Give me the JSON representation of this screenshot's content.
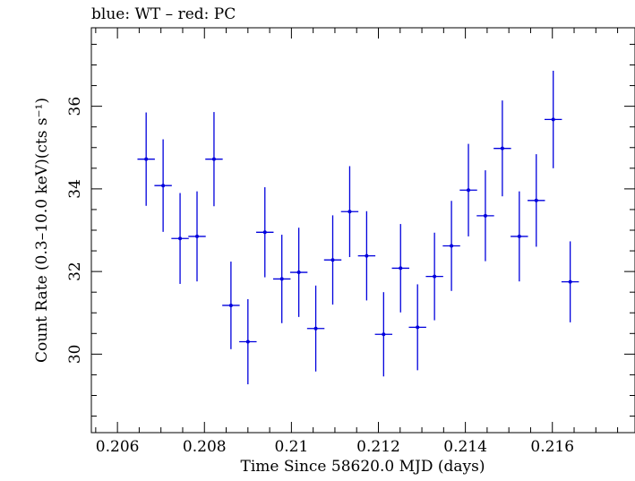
{
  "chart_data": {
    "type": "scatter",
    "title": "blue: WT – red: PC",
    "xlabel": "Time Since 58620.0 MJD (days)",
    "ylabel": "Count Rate (0.3–10.0 keV)(cts s⁻¹)",
    "xlim": [
      0.2054,
      0.2179
    ],
    "ylim": [
      28.1,
      37.9
    ],
    "x_ticks": [
      0.206,
      0.208,
      0.21,
      0.212,
      0.214,
      0.216
    ],
    "x_tick_labels": [
      "0.206",
      "0.208",
      "0.21",
      "0.212",
      "0.214",
      "0.216"
    ],
    "y_ticks": [
      30,
      32,
      34,
      36
    ],
    "y_tick_labels": [
      "30",
      "32",
      "34",
      "36"
    ],
    "grid": false,
    "series": [
      {
        "color": "#0000dd",
        "points": [
          {
            "x": 0.20666,
            "xerr": 0.0002,
            "y": 34.72,
            "yerr": 1.13
          },
          {
            "x": 0.20705,
            "xerr": 0.0002,
            "y": 34.08,
            "yerr": 1.12
          },
          {
            "x": 0.20744,
            "xerr": 0.0002,
            "y": 32.8,
            "yerr": 1.1
          },
          {
            "x": 0.20783,
            "xerr": 0.0002,
            "y": 32.85,
            "yerr": 1.09
          },
          {
            "x": 0.20822,
            "xerr": 0.0002,
            "y": 34.72,
            "yerr": 1.14
          },
          {
            "x": 0.20861,
            "xerr": 0.0002,
            "y": 31.18,
            "yerr": 1.06
          },
          {
            "x": 0.209,
            "xerr": 0.0002,
            "y": 30.3,
            "yerr": 1.03
          },
          {
            "x": 0.20939,
            "xerr": 0.0002,
            "y": 32.95,
            "yerr": 1.09
          },
          {
            "x": 0.20978,
            "xerr": 0.0002,
            "y": 31.82,
            "yerr": 1.07
          },
          {
            "x": 0.21017,
            "xerr": 0.0002,
            "y": 31.98,
            "yerr": 1.08
          },
          {
            "x": 0.21056,
            "xerr": 0.0002,
            "y": 30.62,
            "yerr": 1.04
          },
          {
            "x": 0.21095,
            "xerr": 0.0002,
            "y": 32.28,
            "yerr": 1.08
          },
          {
            "x": 0.21134,
            "xerr": 0.0002,
            "y": 33.45,
            "yerr": 1.1
          },
          {
            "x": 0.21173,
            "xerr": 0.0002,
            "y": 32.38,
            "yerr": 1.08
          },
          {
            "x": 0.21212,
            "xerr": 0.0002,
            "y": 30.48,
            "yerr": 1.02
          },
          {
            "x": 0.21251,
            "xerr": 0.0002,
            "y": 32.08,
            "yerr": 1.07
          },
          {
            "x": 0.2129,
            "xerr": 0.0002,
            "y": 30.65,
            "yerr": 1.04
          },
          {
            "x": 0.21329,
            "xerr": 0.0002,
            "y": 31.88,
            "yerr": 1.06
          },
          {
            "x": 0.21368,
            "xerr": 0.0002,
            "y": 32.62,
            "yerr": 1.09
          },
          {
            "x": 0.21407,
            "xerr": 0.0002,
            "y": 33.97,
            "yerr": 1.12
          },
          {
            "x": 0.21446,
            "xerr": 0.0002,
            "y": 33.35,
            "yerr": 1.1
          },
          {
            "x": 0.21485,
            "xerr": 0.0002,
            "y": 34.98,
            "yerr": 1.16
          },
          {
            "x": 0.21524,
            "xerr": 0.0002,
            "y": 32.85,
            "yerr": 1.09
          },
          {
            "x": 0.21563,
            "xerr": 0.0002,
            "y": 33.72,
            "yerr": 1.12
          },
          {
            "x": 0.21602,
            "xerr": 0.0002,
            "y": 35.68,
            "yerr": 1.18
          },
          {
            "x": 0.21641,
            "xerr": 0.0002,
            "y": 31.75,
            "yerr": 0.98
          }
        ]
      }
    ]
  }
}
